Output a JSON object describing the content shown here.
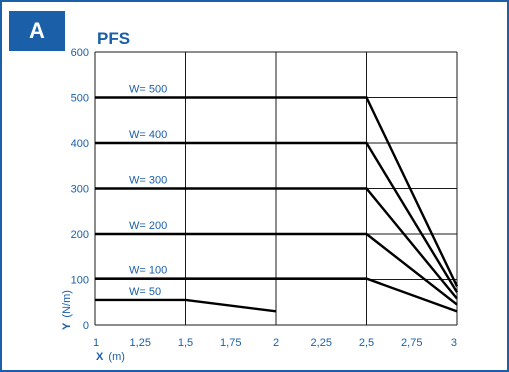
{
  "panel": {
    "letter": "A"
  },
  "chart_data": {
    "type": "line",
    "title": "PFS",
    "xlabel": {
      "symbol": "X",
      "unit": "(m)"
    },
    "ylabel": {
      "symbol": "Y",
      "unit": "(N/m)"
    },
    "xlim": [
      1,
      3
    ],
    "ylim": [
      0,
      600
    ],
    "x_ticks": [
      1,
      1.25,
      1.5,
      1.75,
      2,
      2.25,
      2.5,
      2.75,
      3
    ],
    "x_tick_labels": [
      "1",
      "1,25",
      "1,5",
      "1,75",
      "2",
      "2,25",
      "2,5",
      "2,75",
      "3"
    ],
    "y_ticks": [
      0,
      100,
      200,
      300,
      400,
      500,
      600
    ],
    "y_tick_labels": [
      "0",
      "100",
      "200",
      "300",
      "400",
      "500",
      "600"
    ],
    "x_gridlines": [
      1,
      1.5,
      2,
      2.5,
      3
    ],
    "y_gridlines": [
      100,
      200,
      300,
      400,
      500,
      600
    ],
    "series": [
      {
        "name": "W= 500",
        "points": [
          [
            1,
            500
          ],
          [
            2.5,
            500
          ],
          [
            3,
            85
          ]
        ]
      },
      {
        "name": "W= 400",
        "points": [
          [
            1,
            400
          ],
          [
            2.5,
            400
          ],
          [
            3,
            72
          ]
        ]
      },
      {
        "name": "W= 300",
        "points": [
          [
            1,
            300
          ],
          [
            2.5,
            300
          ],
          [
            3,
            58
          ]
        ]
      },
      {
        "name": "W= 200",
        "points": [
          [
            1,
            200
          ],
          [
            2.5,
            200
          ],
          [
            3,
            45
          ]
        ]
      },
      {
        "name": "W= 100",
        "points": [
          [
            1,
            102
          ],
          [
            2.5,
            102
          ],
          [
            3,
            30
          ]
        ]
      },
      {
        "name": "W= 50",
        "points": [
          [
            1,
            55
          ],
          [
            1.5,
            55
          ],
          [
            2,
            30
          ]
        ]
      }
    ]
  }
}
